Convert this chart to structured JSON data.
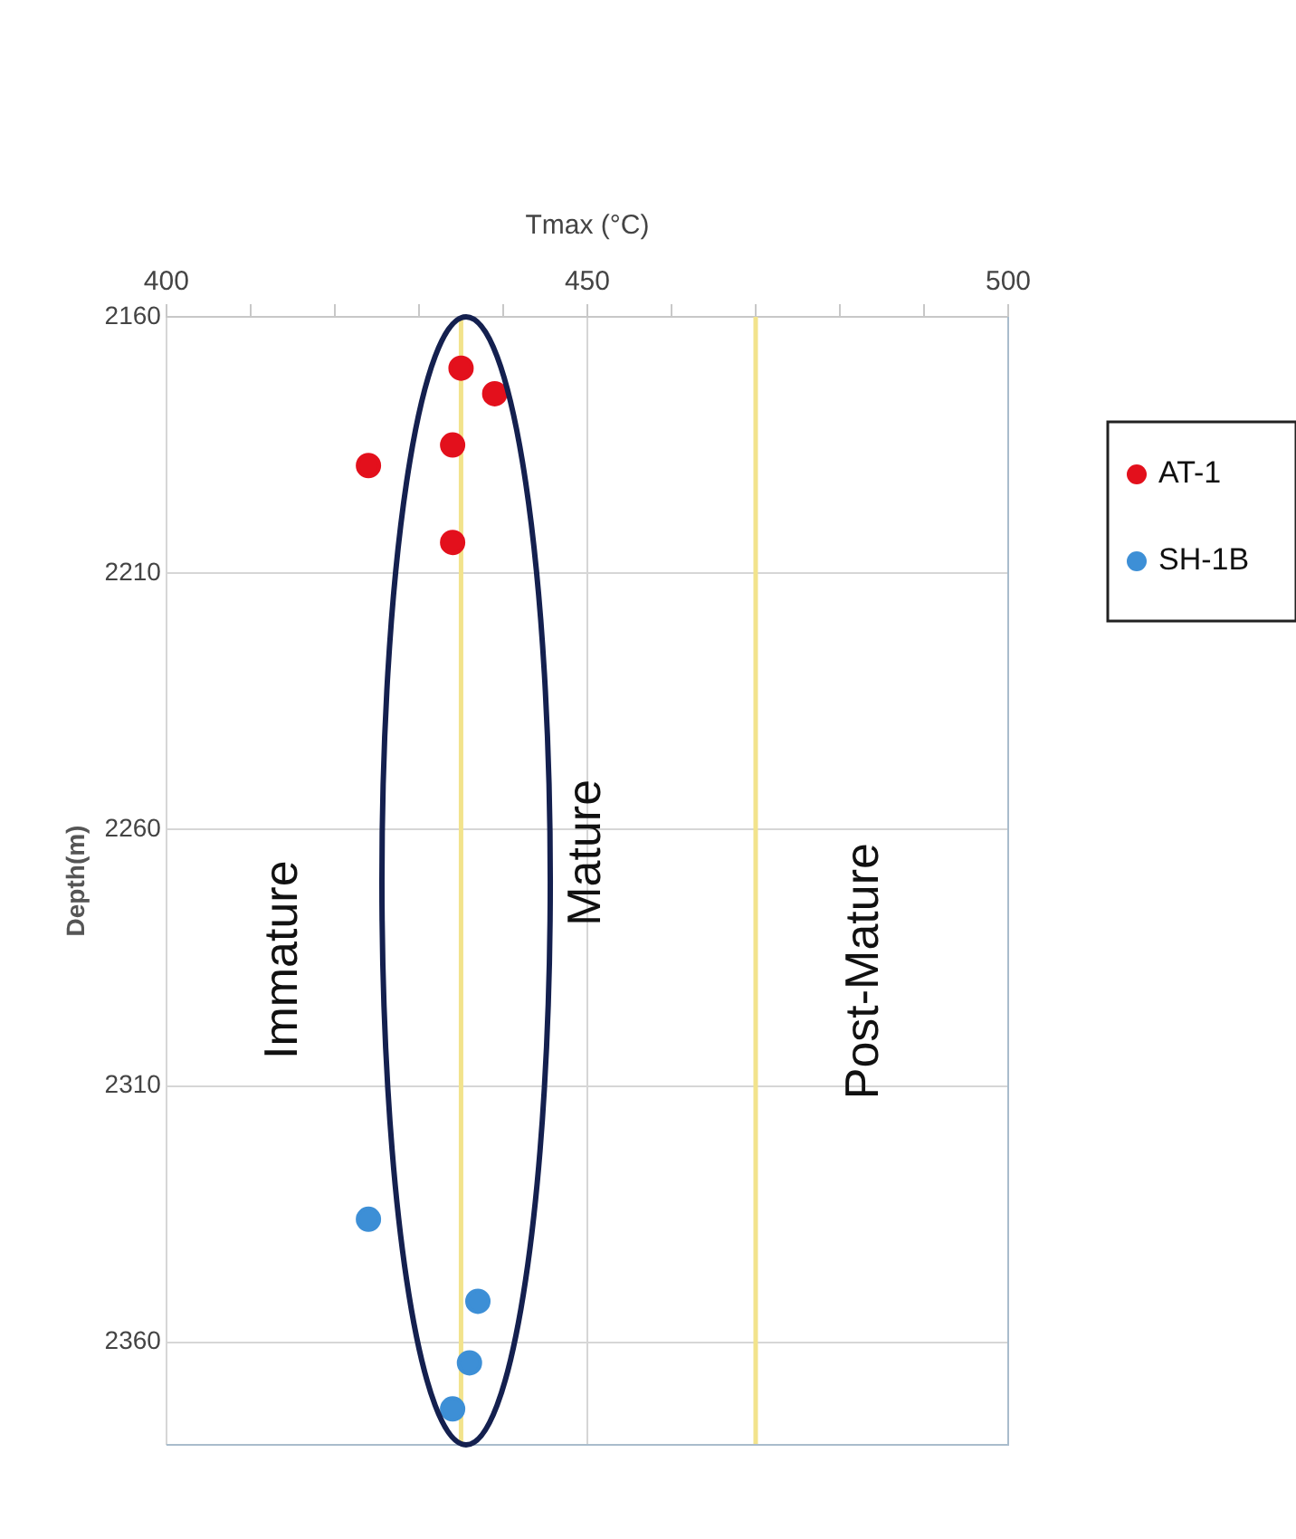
{
  "chart_data": {
    "type": "scatter",
    "xlabel": "Tmax (°C)",
    "ylabel": "Depth(m)",
    "xlim": [
      400,
      500
    ],
    "xticks": [
      400,
      {
        "value": 410,
        "label": null
      },
      {
        "value": 420,
        "label": null
      },
      {
        "value": 430,
        "label": null
      },
      {
        "value": 440,
        "label": null
      },
      450,
      {
        "value": 460,
        "label": null
      },
      {
        "value": 470,
        "label": null
      },
      {
        "value": 480,
        "label": null
      },
      {
        "value": 490,
        "label": null
      },
      500
    ],
    "ylim": [
      2380,
      2160
    ],
    "yticks": [
      2160,
      2210,
      2260,
      2310,
      2360
    ],
    "series": [
      {
        "name": "AT-1",
        "color": "#e3101c",
        "x": [
          435,
          439,
          434,
          424,
          434
        ],
        "values": [
          2170,
          2175,
          2185,
          2189,
          2204
        ]
      },
      {
        "name": "SH-1B",
        "color": "#3d8fd6",
        "x": [
          424,
          437,
          436,
          434
        ],
        "values": [
          2336,
          2352,
          2364,
          2373
        ]
      }
    ],
    "ref_lines": [
      {
        "axis": "x",
        "value": 435,
        "color": "#f2e38c"
      },
      {
        "axis": "x",
        "value": 470,
        "color": "#f2e38c"
      }
    ],
    "annotations": [
      "Immature",
      "Mature",
      "Post-Mature"
    ],
    "grid": true,
    "legend": "right",
    "marker": "circle"
  }
}
